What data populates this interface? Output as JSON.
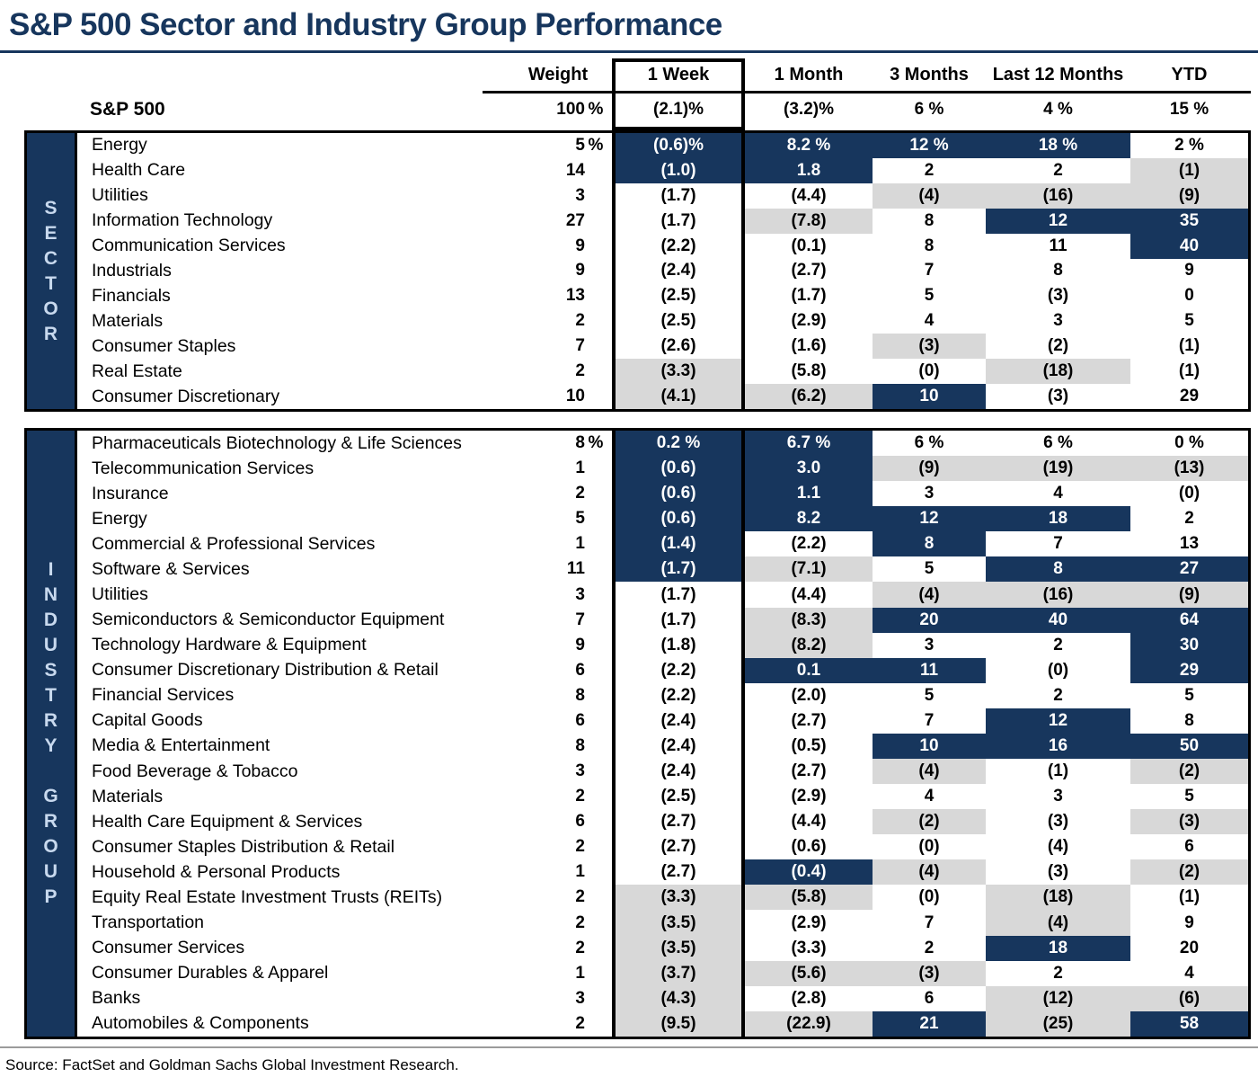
{
  "title": "S&P 500 Sector and Industry Group Performance",
  "source": "Source: FactSet and Goldman Sachs Global Investment Research.",
  "columns": [
    "Weight",
    "1 Week",
    "1 Month",
    "3 Months",
    "Last 12 Months",
    "YTD"
  ],
  "sp500": {
    "label": "S&P 500",
    "weight": "100 %",
    "values": [
      "(2.1)%",
      "(3.2)%",
      "6 %",
      "4 %",
      "15 %"
    ]
  },
  "colors": {
    "navy_highlight": "#17365D",
    "gray_highlight": "#D8D8D8",
    "band_letter": "#C8D9EE"
  },
  "chart_data": {
    "type": "table",
    "title": "S&P 500 Sector and Industry Group Performance",
    "columns": [
      "Weight",
      "1 Week",
      "1 Month",
      "3 Months",
      "Last 12 Months",
      "YTD"
    ],
    "note": "values in parentheses are negative percents; shades: n = navy highlight (white text), g = gray highlight, w = no highlight",
    "tables": [
      {
        "band": "SECTOR",
        "band_words": [
          "SECTOR"
        ],
        "rows": [
          {
            "label": "Energy",
            "weight": "5 %",
            "values": [
              "(0.6)%",
              "8.2 %",
              "12 %",
              "18 %",
              "2 %"
            ],
            "shades": [
              "n",
              "n",
              "n",
              "n",
              "w"
            ]
          },
          {
            "label": "Health Care",
            "weight": "14",
            "values": [
              "(1.0)",
              "1.8",
              "2",
              "2",
              "(1)"
            ],
            "shades": [
              "n",
              "n",
              "w",
              "w",
              "g"
            ]
          },
          {
            "label": "Utilities",
            "weight": "3",
            "values": [
              "(1.7)",
              "(4.4)",
              "(4)",
              "(16)",
              "(9)"
            ],
            "shades": [
              "w",
              "w",
              "g",
              "g",
              "g"
            ]
          },
          {
            "label": "Information Technology",
            "weight": "27",
            "values": [
              "(1.7)",
              "(7.8)",
              "8",
              "12",
              "35"
            ],
            "shades": [
              "w",
              "g",
              "w",
              "n",
              "n"
            ]
          },
          {
            "label": "Communication Services",
            "weight": "9",
            "values": [
              "(2.2)",
              "(0.1)",
              "8",
              "11",
              "40"
            ],
            "shades": [
              "w",
              "w",
              "w",
              "w",
              "n"
            ]
          },
          {
            "label": "Industrials",
            "weight": "9",
            "values": [
              "(2.4)",
              "(2.7)",
              "7",
              "8",
              "9"
            ],
            "shades": [
              "w",
              "w",
              "w",
              "w",
              "w"
            ]
          },
          {
            "label": "Financials",
            "weight": "13",
            "values": [
              "(2.5)",
              "(1.7)",
              "5",
              "(3)",
              "0"
            ],
            "shades": [
              "w",
              "w",
              "w",
              "w",
              "w"
            ]
          },
          {
            "label": "Materials",
            "weight": "2",
            "values": [
              "(2.5)",
              "(2.9)",
              "4",
              "3",
              "5"
            ],
            "shades": [
              "w",
              "w",
              "w",
              "w",
              "w"
            ]
          },
          {
            "label": "Consumer Staples",
            "weight": "7",
            "values": [
              "(2.6)",
              "(1.6)",
              "(3)",
              "(2)",
              "(1)"
            ],
            "shades": [
              "w",
              "w",
              "g",
              "w",
              "w"
            ]
          },
          {
            "label": "Real Estate",
            "weight": "2",
            "values": [
              "(3.3)",
              "(5.8)",
              "(0)",
              "(18)",
              "(1)"
            ],
            "shades": [
              "g",
              "w",
              "w",
              "g",
              "w"
            ]
          },
          {
            "label": "Consumer Discretionary",
            "weight": "10",
            "values": [
              "(4.1)",
              "(6.2)",
              "10",
              "(3)",
              "29"
            ],
            "shades": [
              "g",
              "g",
              "n",
              "w",
              "w"
            ]
          }
        ]
      },
      {
        "band": "INDUSTRY GROUP",
        "band_words": [
          "INDUSTRY",
          "GROUP"
        ],
        "rows": [
          {
            "label": "Pharmaceuticals Biotechnology & Life Sciences",
            "weight": "8 %",
            "values": [
              "0.2 %",
              "6.7 %",
              "6 %",
              "6 %",
              "0 %"
            ],
            "shades": [
              "n",
              "n",
              "w",
              "w",
              "w"
            ]
          },
          {
            "label": "Telecommunication Services",
            "weight": "1",
            "values": [
              "(0.6)",
              "3.0",
              "(9)",
              "(19)",
              "(13)"
            ],
            "shades": [
              "n",
              "n",
              "g",
              "g",
              "g"
            ]
          },
          {
            "label": "Insurance",
            "weight": "2",
            "values": [
              "(0.6)",
              "1.1",
              "3",
              "4",
              "(0)"
            ],
            "shades": [
              "n",
              "n",
              "w",
              "w",
              "w"
            ]
          },
          {
            "label": "Energy",
            "weight": "5",
            "values": [
              "(0.6)",
              "8.2",
              "12",
              "18",
              "2"
            ],
            "shades": [
              "n",
              "n",
              "n",
              "n",
              "w"
            ]
          },
          {
            "label": "Commercial & Professional Services",
            "weight": "1",
            "values": [
              "(1.4)",
              "(2.2)",
              "8",
              "7",
              "13"
            ],
            "shades": [
              "n",
              "w",
              "n",
              "w",
              "w"
            ]
          },
          {
            "label": "Software & Services",
            "weight": "11",
            "values": [
              "(1.7)",
              "(7.1)",
              "5",
              "8",
              "27"
            ],
            "shades": [
              "n",
              "g",
              "w",
              "n",
              "n"
            ]
          },
          {
            "label": "Utilities",
            "weight": "3",
            "values": [
              "(1.7)",
              "(4.4)",
              "(4)",
              "(16)",
              "(9)"
            ],
            "shades": [
              "w",
              "w",
              "g",
              "g",
              "g"
            ]
          },
          {
            "label": "Semiconductors & Semiconductor Equipment",
            "weight": "7",
            "values": [
              "(1.7)",
              "(8.3)",
              "20",
              "40",
              "64"
            ],
            "shades": [
              "w",
              "g",
              "n",
              "n",
              "n"
            ]
          },
          {
            "label": "Technology Hardware & Equipment",
            "weight": "9",
            "values": [
              "(1.8)",
              "(8.2)",
              "3",
              "2",
              "30"
            ],
            "shades": [
              "w",
              "g",
              "w",
              "w",
              "n"
            ]
          },
          {
            "label": "Consumer Discretionary Distribution & Retail",
            "weight": "6",
            "values": [
              "(2.2)",
              "0.1",
              "11",
              "(0)",
              "29"
            ],
            "shades": [
              "w",
              "n",
              "n",
              "w",
              "n"
            ]
          },
          {
            "label": "Financial Services",
            "weight": "8",
            "values": [
              "(2.2)",
              "(2.0)",
              "5",
              "2",
              "5"
            ],
            "shades": [
              "w",
              "w",
              "w",
              "w",
              "w"
            ]
          },
          {
            "label": "Capital Goods",
            "weight": "6",
            "values": [
              "(2.4)",
              "(2.7)",
              "7",
              "12",
              "8"
            ],
            "shades": [
              "w",
              "w",
              "w",
              "n",
              "w"
            ]
          },
          {
            "label": "Media & Entertainment",
            "weight": "8",
            "values": [
              "(2.4)",
              "(0.5)",
              "10",
              "16",
              "50"
            ],
            "shades": [
              "w",
              "w",
              "n",
              "n",
              "n"
            ]
          },
          {
            "label": "Food Beverage & Tobacco",
            "weight": "3",
            "values": [
              "(2.4)",
              "(2.7)",
              "(4)",
              "(1)",
              "(2)"
            ],
            "shades": [
              "w",
              "w",
              "g",
              "w",
              "g"
            ]
          },
          {
            "label": "Materials",
            "weight": "2",
            "values": [
              "(2.5)",
              "(2.9)",
              "4",
              "3",
              "5"
            ],
            "shades": [
              "w",
              "w",
              "w",
              "w",
              "w"
            ]
          },
          {
            "label": "Health Care Equipment & Services",
            "weight": "6",
            "values": [
              "(2.7)",
              "(4.4)",
              "(2)",
              "(3)",
              "(3)"
            ],
            "shades": [
              "w",
              "w",
              "g",
              "w",
              "g"
            ]
          },
          {
            "label": "Consumer Staples Distribution & Retail",
            "weight": "2",
            "values": [
              "(2.7)",
              "(0.6)",
              "(0)",
              "(4)",
              "6"
            ],
            "shades": [
              "w",
              "w",
              "w",
              "w",
              "w"
            ]
          },
          {
            "label": "Household & Personal Products",
            "weight": "1",
            "values": [
              "(2.7)",
              "(0.4)",
              "(4)",
              "(3)",
              "(2)"
            ],
            "shades": [
              "w",
              "n",
              "g",
              "w",
              "g"
            ]
          },
          {
            "label": "Equity Real Estate Investment Trusts (REITs)",
            "weight": "2",
            "values": [
              "(3.3)",
              "(5.8)",
              "(0)",
              "(18)",
              "(1)"
            ],
            "shades": [
              "g",
              "g",
              "w",
              "g",
              "w"
            ]
          },
          {
            "label": "Transportation",
            "weight": "2",
            "values": [
              "(3.5)",
              "(2.9)",
              "7",
              "(4)",
              "9"
            ],
            "shades": [
              "g",
              "w",
              "w",
              "g",
              "w"
            ]
          },
          {
            "label": "Consumer Services",
            "weight": "2",
            "values": [
              "(3.5)",
              "(3.3)",
              "2",
              "18",
              "20"
            ],
            "shades": [
              "g",
              "w",
              "w",
              "n",
              "w"
            ]
          },
          {
            "label": "Consumer Durables & Apparel",
            "weight": "1",
            "values": [
              "(3.7)",
              "(5.6)",
              "(3)",
              "2",
              "4"
            ],
            "shades": [
              "g",
              "g",
              "g",
              "w",
              "w"
            ]
          },
          {
            "label": "Banks",
            "weight": "3",
            "values": [
              "(4.3)",
              "(2.8)",
              "6",
              "(12)",
              "(6)"
            ],
            "shades": [
              "g",
              "w",
              "w",
              "g",
              "g"
            ]
          },
          {
            "label": "Automobiles & Components",
            "weight": "2",
            "values": [
              "(9.5)",
              "(22.9)",
              "21",
              "(25)",
              "58"
            ],
            "shades": [
              "g",
              "g",
              "n",
              "g",
              "n"
            ]
          }
        ]
      }
    ]
  }
}
